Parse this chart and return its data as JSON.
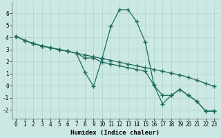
{
  "xlabel": "Humidex (Indice chaleur)",
  "bg_color": "#cce8e4",
  "line_color": "#1a6b5a",
  "grid_color": "#b8d8d4",
  "xlim": [
    -0.5,
    23.5
  ],
  "ylim": [
    -2.7,
    6.9
  ],
  "xticks": [
    0,
    1,
    2,
    3,
    4,
    5,
    6,
    7,
    8,
    9,
    10,
    11,
    12,
    13,
    14,
    15,
    16,
    17,
    18,
    19,
    20,
    21,
    22,
    23
  ],
  "yticks": [
    -2,
    -1,
    0,
    1,
    2,
    3,
    4,
    5,
    6
  ],
  "line1_x": [
    0,
    1,
    2,
    3,
    4,
    5,
    6,
    7,
    8,
    9,
    10,
    11,
    12,
    13,
    14,
    15,
    16,
    17,
    18,
    19,
    20,
    21,
    22,
    23
  ],
  "line1_y": [
    4.1,
    3.75,
    3.5,
    3.3,
    3.15,
    3.0,
    2.85,
    2.7,
    2.55,
    2.4,
    2.25,
    2.1,
    1.95,
    1.8,
    1.65,
    1.5,
    1.35,
    1.2,
    1.05,
    0.9,
    0.7,
    0.45,
    0.2,
    -0.05
  ],
  "line2_x": [
    0,
    1,
    2,
    3,
    4,
    5,
    6,
    7,
    8,
    9,
    10,
    11,
    12,
    13,
    14,
    15,
    16,
    17,
    18,
    19,
    20,
    21,
    22,
    23
  ],
  "line2_y": [
    4.1,
    3.75,
    3.5,
    3.3,
    3.15,
    3.0,
    2.85,
    2.7,
    1.1,
    -0.05,
    2.3,
    4.9,
    6.3,
    6.3,
    5.3,
    3.6,
    0.05,
    -1.5,
    -0.8,
    -0.3,
    -0.8,
    -1.3,
    -2.1,
    -2.1
  ],
  "line3_x": [
    0,
    1,
    2,
    3,
    4,
    5,
    6,
    7,
    8,
    9,
    10,
    11,
    12,
    13,
    14,
    15,
    16,
    17,
    18,
    19,
    20,
    21,
    22,
    23
  ],
  "line3_y": [
    4.1,
    3.75,
    3.5,
    3.3,
    3.15,
    3.0,
    2.85,
    2.7,
    2.3,
    2.3,
    1.95,
    1.8,
    1.65,
    1.5,
    1.35,
    1.2,
    0.05,
    -0.8,
    -0.8,
    -0.3,
    -0.8,
    -1.3,
    -2.1,
    -2.1
  ],
  "marker": "+",
  "markersize": 4,
  "markeredgewidth": 1.0,
  "linewidth": 0.9,
  "tick_fontsize": 5.5,
  "label_fontsize": 6.5,
  "label_fontweight": "bold"
}
